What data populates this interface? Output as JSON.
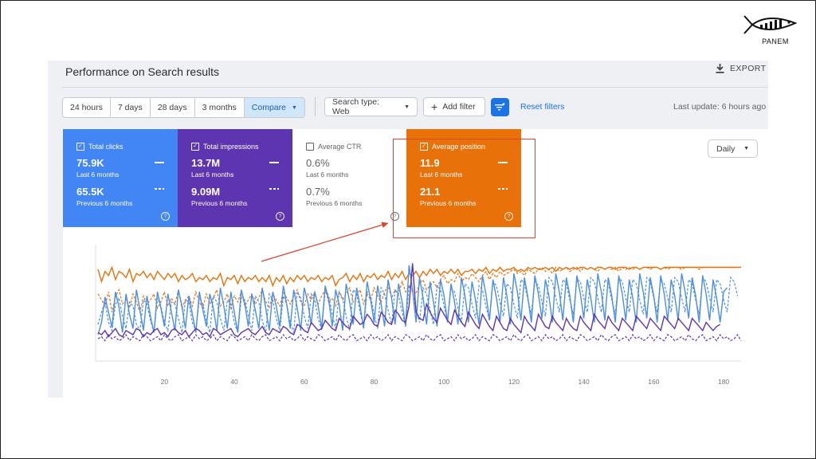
{
  "brand": {
    "name": "PANEM"
  },
  "page": {
    "title": "Performance on Search results",
    "export_label": "EXPORT"
  },
  "filters": {
    "ranges": [
      "24 hours",
      "7 days",
      "28 days",
      "3 months"
    ],
    "compare_label": "Compare",
    "search_type": "Search type: Web",
    "add_filter": "Add filter",
    "reset_filters": "Reset filters",
    "last_update": "Last update: 6 hours ago"
  },
  "metrics": [
    {
      "label": "Total clicks",
      "checked": true,
      "current": "75.9K",
      "current_period": "Last 6 months",
      "previous": "65.5K",
      "previous_period": "Previous 6 months",
      "color": "#4285f4"
    },
    {
      "label": "Total impressions",
      "checked": true,
      "current": "13.7M",
      "current_period": "Last 6 months",
      "previous": "9.09M",
      "previous_period": "Previous 6 months",
      "color": "#5e35b1"
    },
    {
      "label": "Average CTR",
      "checked": false,
      "current": "0.6%",
      "current_period": "Last 6 months",
      "previous": "0.7%",
      "previous_period": "Previous 6 months",
      "color": "#ffffff"
    },
    {
      "label": "Average position",
      "checked": true,
      "current": "11.9",
      "current_period": "Last 6 months",
      "previous": "21.1",
      "previous_period": "Previous 6 months",
      "color": "#e8710a"
    }
  ],
  "granularity": "Daily",
  "chart_data": {
    "type": "line",
    "x_ticks": [
      20,
      40,
      60,
      80,
      100,
      120,
      140,
      160,
      180
    ],
    "xlim": [
      1,
      185
    ],
    "ylim": [
      0,
      100
    ],
    "grid": false,
    "series": [
      {
        "color": "#e8710a",
        "style": "solid",
        "values": [
          82,
          70,
          80,
          76,
          84,
          72,
          80,
          78,
          74,
          82,
          70,
          78,
          76,
          80,
          74,
          78,
          72,
          80,
          76,
          72,
          78,
          74,
          78,
          70,
          76,
          72,
          74,
          78,
          70,
          74,
          72,
          76,
          70,
          74,
          72,
          78,
          66,
          74,
          72,
          76,
          68,
          76,
          70,
          74,
          72,
          76,
          70,
          74,
          70,
          76,
          66,
          74,
          70,
          76,
          68,
          74,
          70,
          76,
          72,
          76,
          70,
          74,
          72,
          76,
          70,
          74,
          72,
          76,
          66,
          72,
          74,
          78,
          70,
          76,
          72,
          78,
          70,
          76,
          74,
          78,
          72,
          76,
          74,
          80,
          72,
          78,
          74,
          80,
          72,
          78,
          76,
          80,
          74,
          80,
          76,
          82,
          78,
          82,
          76,
          80,
          78,
          82,
          78,
          82,
          76,
          80,
          80,
          82,
          78,
          82,
          80,
          84,
          78,
          82,
          80,
          84,
          80,
          82,
          82,
          84,
          80,
          82,
          80,
          84,
          82,
          84,
          82,
          82,
          84,
          82,
          84,
          80,
          84,
          82,
          84,
          82,
          84,
          82,
          84,
          84,
          82,
          84,
          82,
          84,
          84,
          82,
          84,
          84,
          82,
          84,
          84,
          84,
          82,
          84,
          84,
          82,
          84,
          84,
          84,
          84,
          84,
          82,
          84,
          84,
          84,
          84,
          84,
          84,
          84,
          84,
          84,
          84,
          84,
          84,
          84,
          84,
          84,
          84,
          84,
          84,
          84,
          84,
          84,
          84,
          84
        ]
      },
      {
        "color": "#e8710a",
        "style": "dashed",
        "values": [
          58,
          52,
          46,
          60,
          40,
          55,
          62,
          48,
          52,
          44,
          58,
          50,
          40,
          56,
          48,
          52,
          58,
          44,
          50,
          60,
          46,
          54,
          48,
          62,
          44,
          52,
          56,
          46,
          60,
          50,
          44,
          58,
          48,
          54,
          62,
          46,
          50,
          58,
          44,
          56,
          50,
          60,
          46,
          52,
          58,
          48,
          54,
          62,
          50,
          44,
          58,
          52,
          46,
          60,
          54,
          48,
          56,
          62,
          50,
          46,
          58,
          52,
          60,
          48,
          56,
          62,
          50,
          54,
          46,
          60,
          52,
          58,
          64,
          50,
          56,
          62,
          48,
          58,
          52,
          64,
          56,
          50,
          60,
          66,
          54,
          62,
          58,
          70,
          60,
          66,
          62,
          58,
          68,
          72,
          62,
          66,
          70,
          64,
          72,
          76,
          68,
          72,
          70,
          78,
          70,
          74,
          72,
          78,
          74,
          70,
          76,
          80,
          72,
          78,
          74,
          80,
          76,
          78,
          80,
          82,
          78,
          80,
          76,
          82,
          80,
          78,
          82,
          84,
          80,
          82,
          78,
          84,
          80,
          82,
          84,
          80,
          82,
          84,
          80,
          84,
          82,
          84,
          82,
          80,
          84,
          82,
          84,
          82,
          84,
          80,
          84,
          82,
          84,
          82,
          84,
          82,
          84,
          84,
          82,
          84,
          84,
          82,
          84,
          82,
          84,
          84,
          84,
          82,
          84,
          84,
          84,
          84,
          82,
          84,
          84,
          84,
          84,
          84,
          84,
          84,
          84,
          84,
          84,
          84,
          84
        ]
      },
      {
        "color": "#4a8ee8",
        "style": "solid",
        "values": [
          18,
          30,
          55,
          40,
          25,
          60,
          45,
          20,
          58,
          38,
          24,
          62,
          42,
          22,
          56,
          36,
          20,
          60,
          44,
          26,
          58,
          40,
          22,
          62,
          46,
          24,
          56,
          38,
          20,
          60,
          42,
          26,
          58,
          44,
          22,
          64,
          46,
          24,
          60,
          40,
          20,
          62,
          48,
          26,
          58,
          42,
          24,
          64,
          44,
          22,
          60,
          46,
          26,
          66,
          48,
          24,
          62,
          44,
          22,
          64,
          50,
          28,
          60,
          46,
          24,
          66,
          52,
          26,
          62,
          48,
          22,
          68,
          50,
          28,
          64,
          46,
          24,
          70,
          52,
          30,
          66,
          48,
          26,
          72,
          54,
          28,
          68,
          50,
          26,
          86,
          62,
          30,
          74,
          54,
          28,
          70,
          50,
          26,
          72,
          56,
          30,
          68,
          50,
          28,
          74,
          56,
          30,
          70,
          52,
          28,
          76,
          58,
          32,
          72,
          54,
          30,
          74,
          56,
          28,
          78,
          60,
          32,
          74,
          54,
          30,
          76,
          58,
          34,
          72,
          56,
          30,
          78,
          60,
          32,
          74,
          56,
          30,
          76,
          58,
          34,
          72,
          54,
          30,
          78,
          60,
          32,
          74,
          56,
          30,
          76,
          58,
          32,
          72,
          54,
          30,
          78,
          60,
          34,
          74,
          56,
          30,
          76,
          58,
          32,
          72,
          56,
          32,
          78,
          60,
          34,
          74,
          56,
          30,
          76,
          58,
          32,
          72,
          54,
          30,
          60,
          64
        ]
      },
      {
        "color": "#4a8ee8",
        "style": "dashed",
        "values": [
          28,
          40,
          50,
          30,
          22,
          48,
          54,
          36,
          24,
          50,
          46,
          28,
          22,
          52,
          48,
          32,
          20,
          54,
          46,
          30,
          22,
          50,
          48,
          34,
          20,
          52,
          50,
          30,
          22,
          54,
          48,
          32,
          20,
          56,
          50,
          34,
          22,
          52,
          48,
          30,
          20,
          54,
          52,
          36,
          22,
          56,
          50,
          32,
          20,
          58,
          52,
          34,
          22,
          56,
          48,
          30,
          20,
          60,
          54,
          36,
          24,
          58,
          52,
          34,
          22,
          62,
          56,
          38,
          24,
          60,
          54,
          36,
          22,
          62,
          58,
          40,
          26,
          60,
          56,
          38,
          24,
          64,
          58,
          42,
          28,
          62,
          56,
          40,
          26,
          66,
          60,
          44,
          30,
          64,
          58,
          42,
          28,
          66,
          62,
          46,
          32,
          64,
          60,
          44,
          30,
          68,
          64,
          48,
          34,
          66,
          62,
          46,
          32,
          70,
          66,
          50,
          36,
          68,
          64,
          48,
          34,
          72,
          68,
          52,
          38,
          70,
          66,
          50,
          36,
          74,
          70,
          54,
          40,
          72,
          68,
          52,
          38,
          72,
          70,
          54,
          40,
          74,
          70,
          54,
          40,
          72,
          68,
          52,
          38,
          74,
          70,
          54,
          40,
          72,
          68,
          52,
          38,
          74,
          70,
          54,
          40,
          72,
          68,
          54,
          40,
          74,
          70,
          54,
          40,
          72,
          68,
          52,
          38,
          74,
          70,
          54,
          40,
          72,
          68,
          52,
          40,
          74,
          70,
          56
        ]
      },
      {
        "color": "#5e35b1",
        "style": "solid",
        "values": [
          20,
          18,
          22,
          16,
          20,
          24,
          18,
          16,
          22,
          20,
          18,
          24,
          22,
          16,
          20,
          18,
          22,
          24,
          18,
          20,
          16,
          22,
          24,
          20,
          18,
          22,
          16,
          20,
          24,
          22,
          18,
          20,
          16,
          24,
          22,
          18,
          20,
          22,
          24,
          18,
          16,
          20,
          22,
          24,
          20,
          18,
          22,
          26,
          20,
          18,
          24,
          22,
          20,
          26,
          24,
          20,
          18,
          28,
          26,
          22,
          20,
          30,
          26,
          22,
          24,
          32,
          28,
          24,
          22,
          34,
          30,
          26,
          24,
          36,
          32,
          28,
          30,
          38,
          34,
          28,
          26,
          40,
          36,
          30,
          28,
          42,
          38,
          32,
          30,
          46,
          88,
          40,
          34,
          32,
          48,
          40,
          34,
          30,
          44,
          38,
          32,
          28,
          42,
          36,
          30,
          26,
          40,
          34,
          28,
          24,
          38,
          32,
          26,
          22,
          36,
          30,
          24,
          22,
          34,
          28,
          24,
          20,
          36,
          30,
          26,
          22,
          38,
          32,
          26,
          24,
          36,
          30,
          26,
          22,
          34,
          28,
          24,
          22,
          36,
          30,
          26,
          22,
          38,
          32,
          28,
          24,
          36,
          30,
          26,
          22,
          34,
          30,
          26,
          22,
          36,
          32,
          28,
          24,
          34,
          30,
          26,
          22,
          36,
          32,
          28,
          24,
          34,
          30,
          26,
          22,
          34,
          30,
          26,
          22,
          30,
          26,
          22,
          26,
          28
        ]
      },
      {
        "color": "#5e35b1",
        "style": "dashed",
        "values": [
          14,
          16,
          12,
          18,
          14,
          16,
          12,
          14,
          18,
          12,
          16,
          14,
          12,
          18,
          16,
          12,
          14,
          16,
          12,
          18,
          14,
          12,
          16,
          18,
          12,
          14,
          16,
          12,
          18,
          14,
          16,
          12,
          14,
          18,
          12,
          16,
          14,
          12,
          18,
          16,
          12,
          14,
          16,
          12,
          18,
          14,
          12,
          16,
          18,
          12,
          14,
          16,
          12,
          18,
          14,
          16,
          12,
          14,
          18,
          12,
          16,
          14,
          12,
          18,
          16,
          12,
          14,
          16,
          12,
          18,
          14,
          12,
          16,
          18,
          12,
          14,
          16,
          12,
          18,
          14,
          16,
          12,
          14,
          18,
          12,
          16,
          14,
          12,
          18,
          16,
          12,
          14,
          16,
          12,
          18,
          14,
          12,
          16,
          18,
          12,
          14,
          16,
          12,
          18,
          14,
          16,
          12,
          14,
          18,
          12,
          16,
          14,
          12,
          18,
          16,
          12,
          14,
          16,
          12,
          18,
          14,
          12,
          16,
          18,
          12,
          14,
          16,
          12,
          18,
          14,
          16,
          12,
          14,
          18,
          12,
          16,
          14,
          12,
          18,
          16,
          12,
          14,
          16,
          12,
          18,
          14,
          12,
          16,
          18,
          12,
          14,
          16,
          12,
          18,
          14,
          16,
          12,
          14,
          18,
          12,
          16,
          14,
          12,
          18,
          16,
          12,
          14,
          16,
          12,
          18,
          14,
          12,
          16,
          18,
          12,
          14,
          16,
          12,
          18,
          14,
          16,
          12,
          14,
          18,
          12
        ]
      }
    ]
  }
}
